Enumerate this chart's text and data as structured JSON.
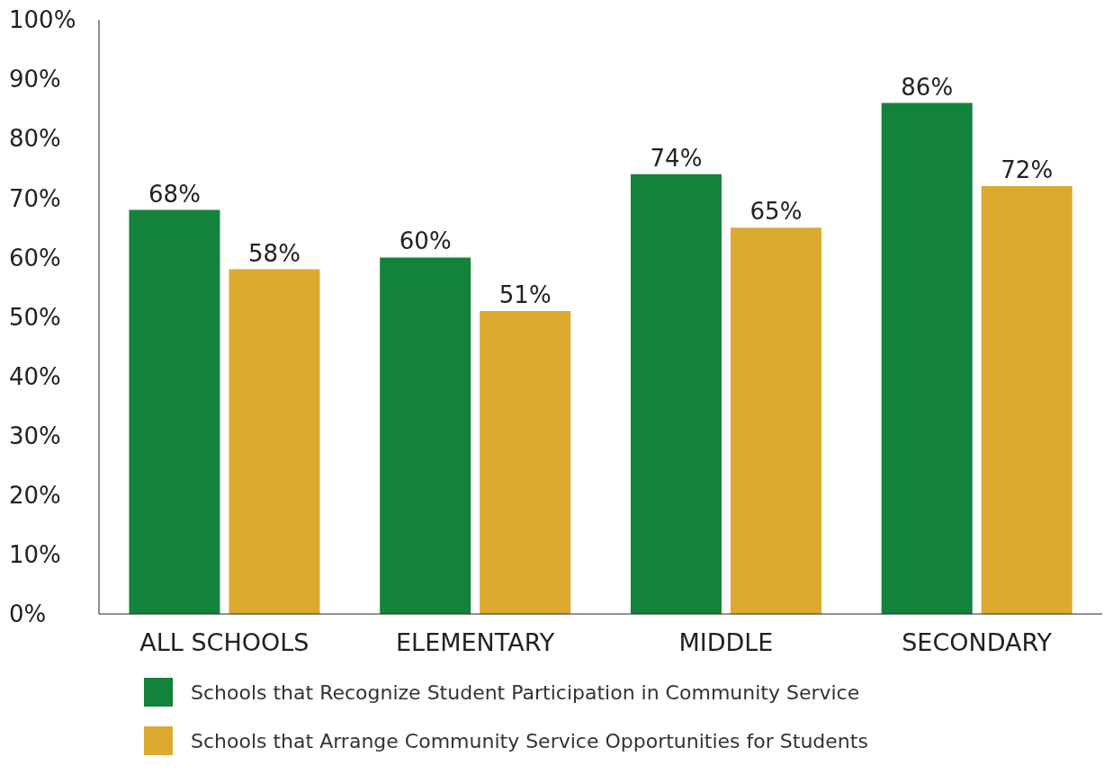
{
  "chart_data": {
    "type": "bar",
    "categories": [
      "ALL SCHOOLS",
      "ELEMENTARY",
      "MIDDLE",
      "SECONDARY"
    ],
    "series": [
      {
        "name": "Schools that Recognize Student Participation in Community Service",
        "color": "#13823b",
        "values": [
          68,
          60,
          74,
          86
        ],
        "value_labels": [
          "68%",
          "60%",
          "74%",
          "86%"
        ]
      },
      {
        "name": "Schools that Arrange Community Service Opportunities for Students",
        "color": "#dcaa2f",
        "values": [
          58,
          51,
          65,
          72
        ],
        "value_labels": [
          "58%",
          "51%",
          "65%",
          "72%"
        ]
      }
    ],
    "ylim": [
      0,
      100
    ],
    "yticks": [
      {
        "value": 0,
        "label": "0%"
      },
      {
        "value": 10,
        "label": "10%"
      },
      {
        "value": 20,
        "label": "20%"
      },
      {
        "value": 30,
        "label": "30%"
      },
      {
        "value": 40,
        "label": "40%"
      },
      {
        "value": 50,
        "label": "50%"
      },
      {
        "value": 60,
        "label": "60%"
      },
      {
        "value": 70,
        "label": "70%"
      },
      {
        "value": 80,
        "label": "80%"
      },
      {
        "value": 90,
        "label": "90%"
      },
      {
        "value": 100,
        "label": "100%"
      }
    ],
    "grid": false,
    "legend": "bottom"
  }
}
